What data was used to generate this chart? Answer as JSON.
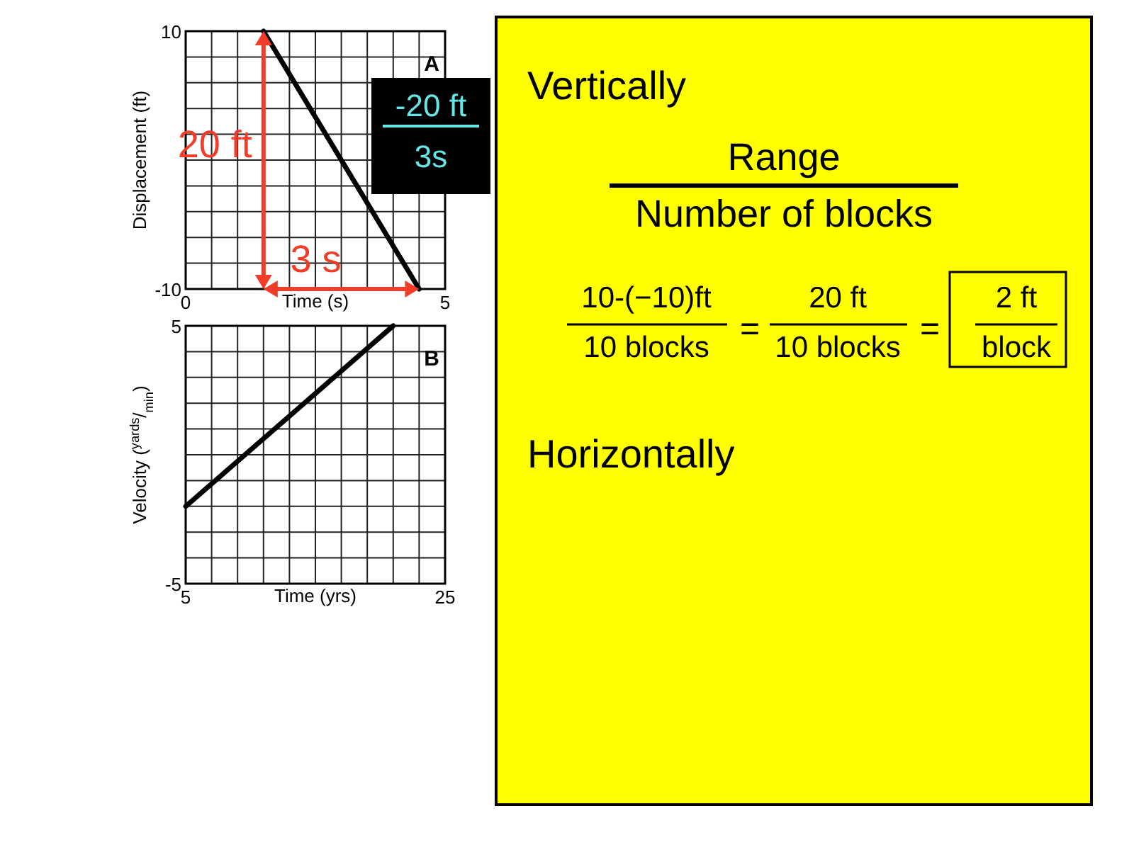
{
  "chart_data": [
    {
      "type": "line",
      "title": "A",
      "xlabel": "Time (s)",
      "ylabel": "Displacement (ft)",
      "x": [
        1.5,
        4.5
      ],
      "values": [
        10,
        -10
      ],
      "color": "#000000",
      "xlim": [
        0,
        5
      ],
      "ylim": [
        -10,
        10
      ],
      "xticks": [
        0,
        {
          "value": 0.5,
          "label": null
        },
        {
          "value": 1,
          "label": null
        },
        {
          "value": 1.5,
          "label": null
        },
        {
          "value": 2,
          "label": null
        },
        {
          "value": 2.5,
          "label": null
        },
        {
          "value": 3,
          "label": null
        },
        {
          "value": 3.5,
          "label": null
        },
        {
          "value": 4,
          "label": null
        },
        {
          "value": 4.5,
          "label": null
        },
        5
      ],
      "yticks": [
        -10,
        {
          "value": -8,
          "label": null
        },
        {
          "value": -6,
          "label": null
        },
        {
          "value": -4,
          "label": null
        },
        {
          "value": -2,
          "label": null
        },
        {
          "value": 0,
          "label": null
        },
        {
          "value": 2,
          "label": null
        },
        {
          "value": 4,
          "label": null
        },
        {
          "value": 6,
          "label": null
        },
        {
          "value": 8,
          "label": null
        },
        10
      ],
      "grid": true,
      "ref_lines": [
        {
          "axis": "x",
          "value": 1.5,
          "label": "20 ft",
          "color": "#f03c28"
        }
      ],
      "annotations": [
        "3 s",
        "-20 ft",
        "3s"
      ]
    },
    {
      "type": "line",
      "title": "B",
      "xlabel": "Time (yrs)",
      "ylabel": "Velocity ($^{yards}$/$_{min}$)",
      "x": [
        5,
        21
      ],
      "values": [
        -2,
        5
      ],
      "color": "#000000",
      "xlim": [
        5,
        25
      ],
      "ylim": [
        -5,
        5
      ],
      "xticks": [
        5,
        {
          "value": 7,
          "label": null
        },
        {
          "value": 9,
          "label": null
        },
        {
          "value": 11,
          "label": null
        },
        {
          "value": 13,
          "label": null
        },
        {
          "value": 15,
          "label": null
        },
        {
          "value": 17,
          "label": null
        },
        {
          "value": 19,
          "label": null
        },
        {
          "value": 21,
          "label": null
        },
        {
          "value": 23,
          "label": null
        },
        25
      ],
      "yticks": [
        -5,
        {
          "value": -4,
          "label": null
        },
        {
          "value": -3,
          "label": null
        },
        {
          "value": -2,
          "label": null
        },
        {
          "value": -1,
          "label": null
        },
        {
          "value": 0,
          "label": null
        },
        {
          "value": 1,
          "label": null
        },
        {
          "value": 2,
          "label": null
        },
        {
          "value": 3,
          "label": null
        },
        {
          "value": 4,
          "label": null
        },
        5
      ],
      "grid": true
    },
    {
      "type": "other",
      "annotations": [
        "Vertically",
        "Range",
        "Number of blocks",
        "10-(−10)ft",
        "10 blocks",
        "=",
        "20 ft",
        "10 blocks",
        "=",
        "2 ft",
        "block",
        "Horizontally"
      ]
    }
  ]
}
